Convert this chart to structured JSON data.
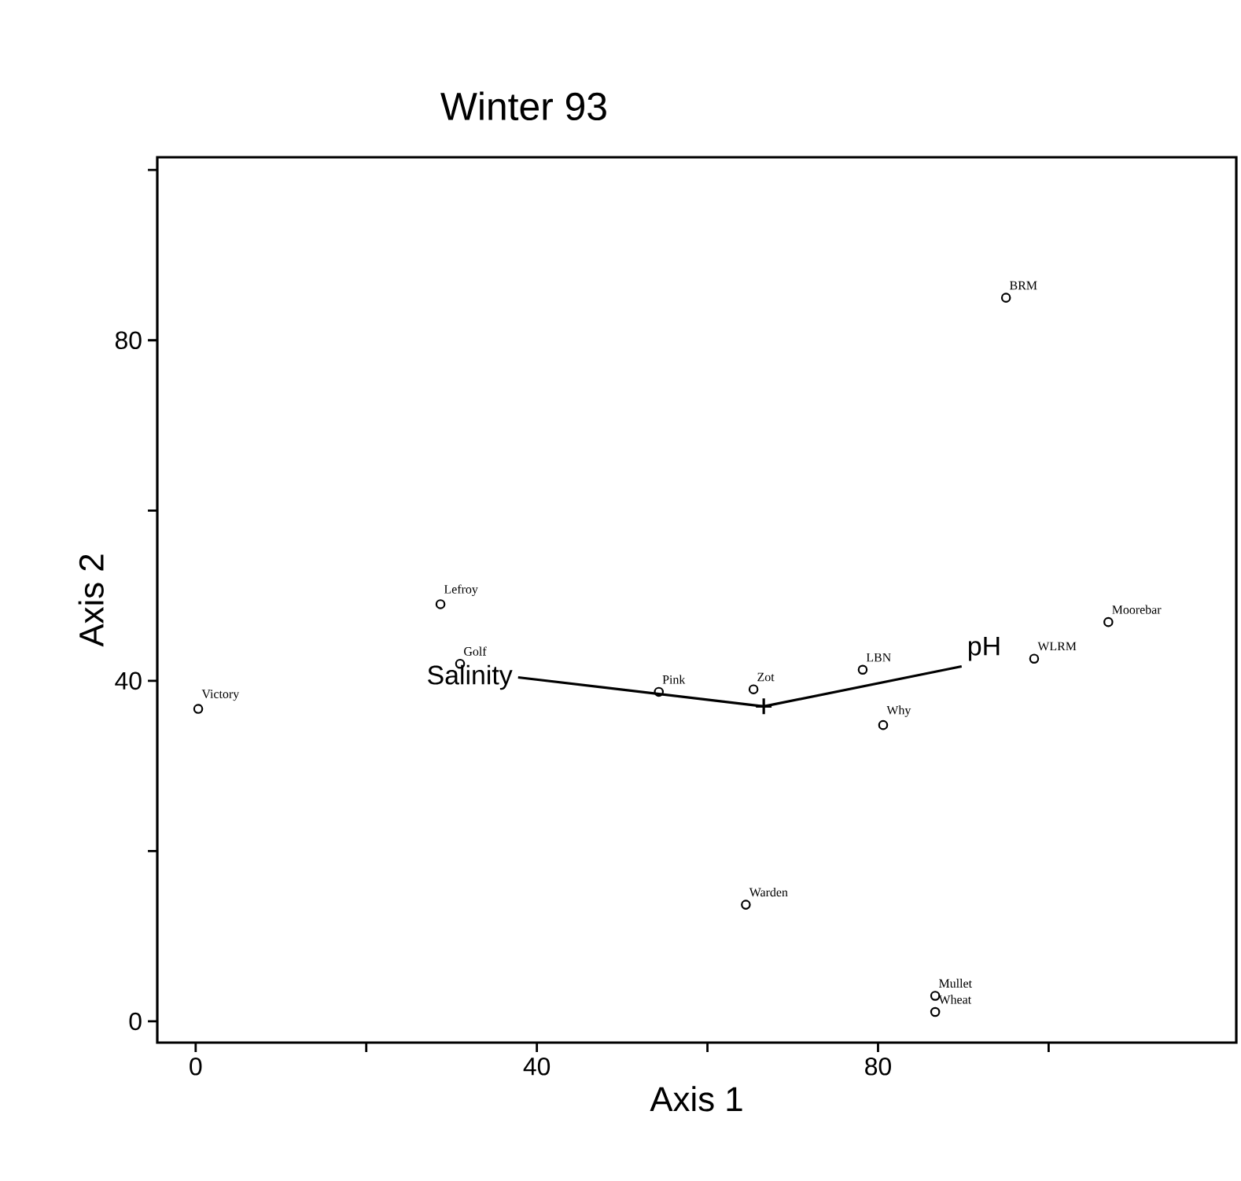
{
  "chart_data": {
    "type": "scatter",
    "title": "Winter 93",
    "xlabel": "Axis 1",
    "ylabel": "Axis 2",
    "xlim": [
      -4.5,
      122
    ],
    "ylim": [
      -2.5,
      101.5
    ],
    "xticks": [
      0,
      {
        "value": 20,
        "label": null
      },
      40,
      {
        "value": 60,
        "label": null
      },
      80,
      {
        "value": 100,
        "label": null
      }
    ],
    "yticks": [
      0,
      {
        "value": 20,
        "label": null
      },
      40,
      {
        "value": 60,
        "label": null
      },
      80,
      {
        "value": 100,
        "label": null
      }
    ],
    "marker": "circle",
    "series": [
      {
        "color": "#000000",
        "x": [
          0.3,
          28.7,
          31,
          54.3,
          65.4,
          78.2,
          80.6,
          95,
          107,
          98.3,
          64.5,
          86.7,
          86.7
        ],
        "values": [
          36.7,
          49,
          42,
          38.7,
          39,
          41.3,
          34.8,
          85,
          46.9,
          42.6,
          13.7,
          3,
          1.1
        ]
      },
      {
        "type": "line",
        "color": "#000000",
        "marker": "none",
        "x": [
          37.8,
          66.6,
          89.8
        ],
        "values": [
          40.4,
          37,
          41.7
        ]
      },
      {
        "color": "#000000",
        "marker": "cross",
        "x": [
          66.6
        ],
        "values": [
          37
        ]
      }
    ],
    "annotations": [
      {
        "text": "Victory",
        "x": 0.3,
        "y": 36.7
      },
      {
        "text": "Lefroy",
        "x": 28.7,
        "y": 49
      },
      {
        "text": "Golf",
        "x": 31,
        "y": 42
      },
      {
        "text": "Pink",
        "x": 54.3,
        "y": 38.7
      },
      {
        "text": "Zot",
        "x": 65.4,
        "y": 39
      },
      {
        "text": "LBN",
        "x": 78.2,
        "y": 41.3
      },
      {
        "text": "Why",
        "x": 80.6,
        "y": 34.8
      },
      {
        "text": "BRM",
        "x": 95,
        "y": 85
      },
      {
        "text": "Moorebar",
        "x": 107,
        "y": 46.9
      },
      {
        "text": "WLRM",
        "x": 98.3,
        "y": 42.6
      },
      {
        "text": "Warden",
        "x": 64.5,
        "y": 13.7
      },
      {
        "text": "Mullet",
        "x": 86.7,
        "y": 3
      },
      {
        "text": "Wheat",
        "x": 86.7,
        "y": 1.1
      },
      {
        "text": "Salinity",
        "x": 37.8,
        "y": 40.4
      },
      {
        "text": "pH",
        "x": 89.8,
        "y": 41.7
      }
    ]
  }
}
